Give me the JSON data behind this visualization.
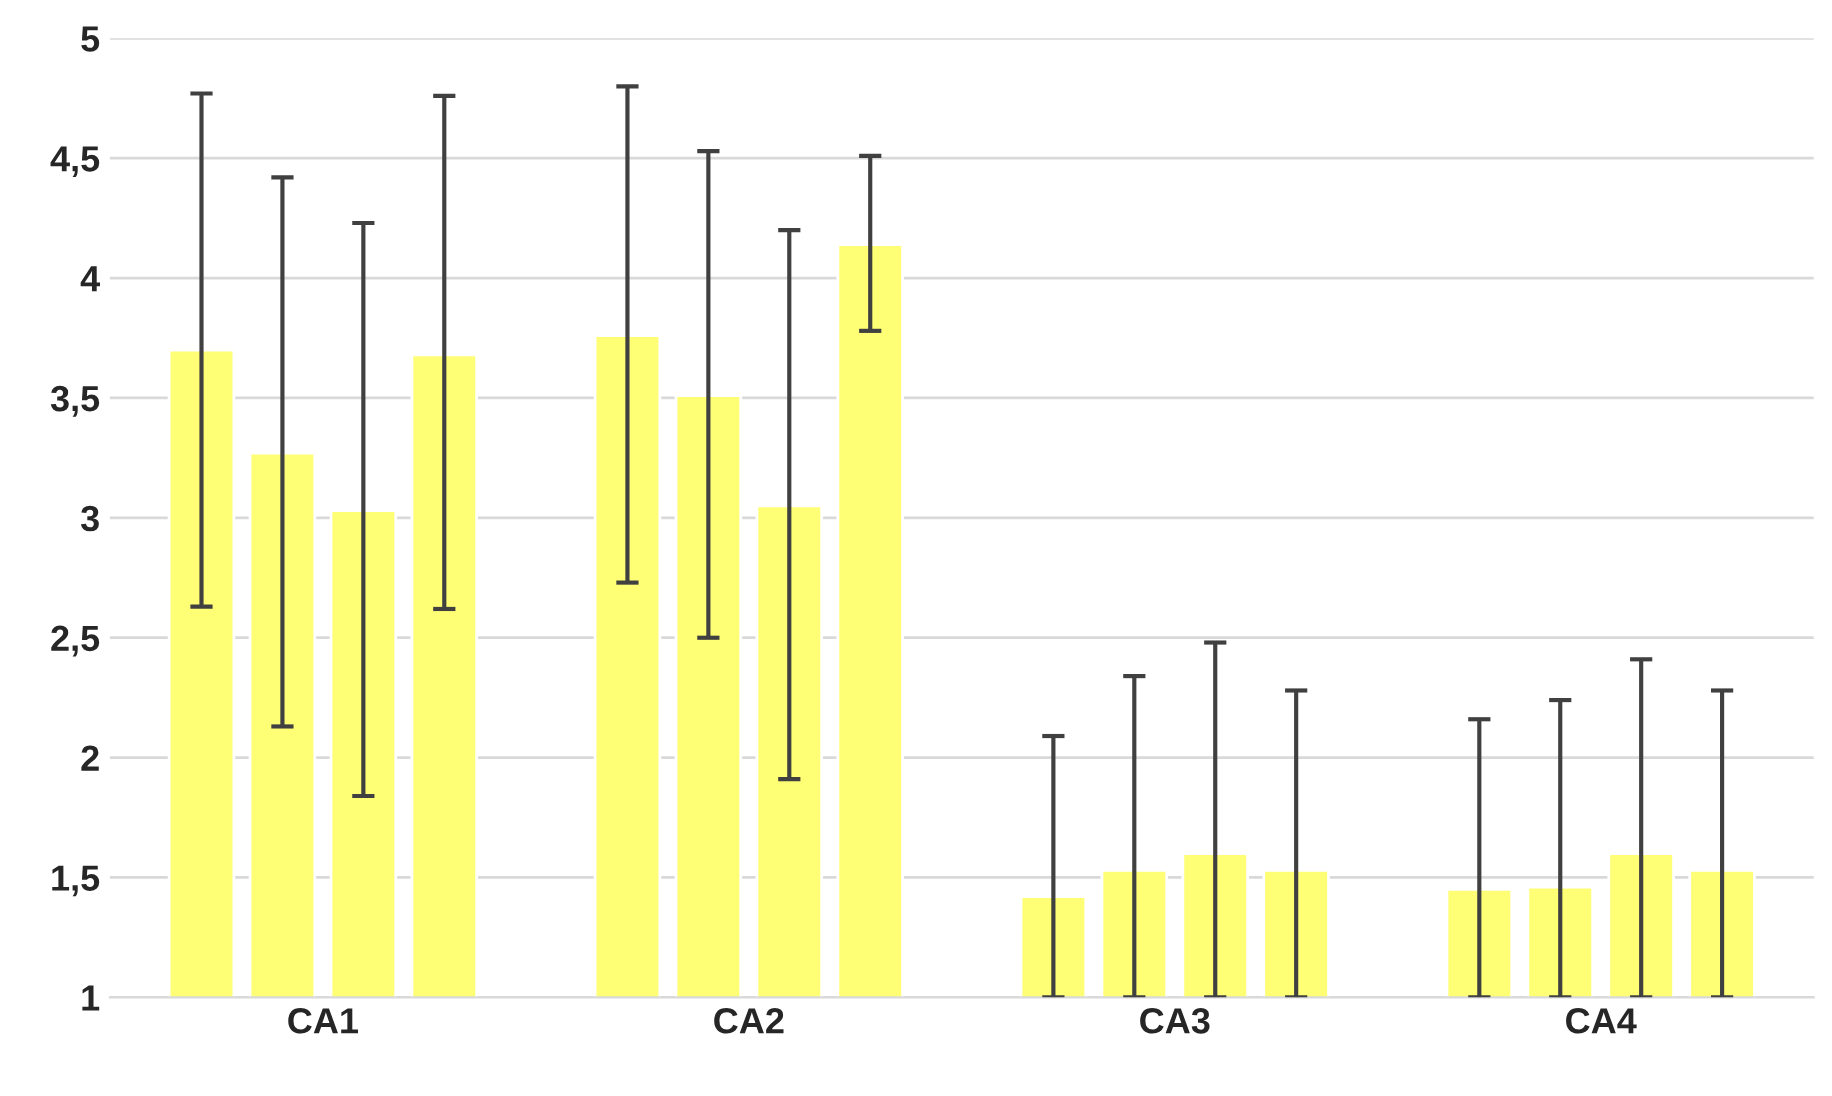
{
  "chart_data": {
    "type": "bar",
    "categories": [
      "CA1",
      "CA2",
      "CA3",
      "CA4"
    ],
    "series": [
      {
        "color": "#ffff75",
        "values": [
          3.7,
          3.76,
          1.42,
          1.45
        ],
        "errors": [
          [
            2.63,
            4.77
          ],
          [
            2.73,
            4.8
          ],
          [
            1,
            2.09
          ],
          [
            1,
            2.16
          ]
        ]
      },
      {
        "color": "#ffff75",
        "values": [
          3.27,
          3.51,
          1.53,
          1.46
        ],
        "errors": [
          [
            2.13,
            4.42
          ],
          [
            2.5,
            4.53
          ],
          [
            1,
            2.34
          ],
          [
            1,
            2.24
          ]
        ]
      },
      {
        "color": "#ffff75",
        "values": [
          3.03,
          3.05,
          1.6,
          1.6
        ],
        "errors": [
          [
            1.84,
            4.23
          ],
          [
            1.91,
            4.2
          ],
          [
            1,
            2.48
          ],
          [
            1,
            2.41
          ]
        ]
      },
      {
        "color": "#ffff75",
        "values": [
          3.68,
          4.14,
          1.53,
          1.53
        ],
        "errors": [
          [
            2.62,
            4.76
          ],
          [
            3.78,
            4.51
          ],
          [
            1,
            2.28
          ],
          [
            1,
            2.28
          ]
        ]
      }
    ],
    "ylim": [
      1,
      5
    ],
    "yticks": [
      {
        "value": 1,
        "label": "1"
      },
      {
        "value": 1.5,
        "label": "1,5"
      },
      {
        "value": 2,
        "label": "2"
      },
      {
        "value": 2.5,
        "label": "2,5"
      },
      {
        "value": 3,
        "label": "3"
      },
      {
        "value": 3.5,
        "label": "3,5"
      },
      {
        "value": 4,
        "label": "4"
      },
      {
        "value": 4.5,
        "label": "4,5"
      },
      {
        "value": 5,
        "label": "5"
      }
    ],
    "grid": "y",
    "legend": false
  }
}
